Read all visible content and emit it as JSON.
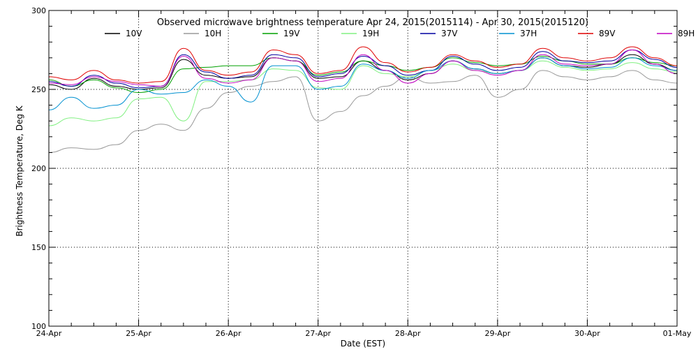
{
  "chart_data": {
    "type": "line",
    "title": "Observed microwave brightness temperature Apr 24, 2015(2015114) - Apr 30, 2015(2015120)",
    "xlabel": "Date (EST)",
    "ylabel": "Brightness Temperature, Deg K",
    "x_ticks": [
      "24-Apr",
      "25-Apr",
      "26-Apr",
      "27-Apr",
      "28-Apr",
      "29-Apr",
      "30-Apr",
      "01-May"
    ],
    "xlim": [
      0,
      7
    ],
    "ylim": [
      100,
      300
    ],
    "y_ticks": [
      100,
      150,
      200,
      250,
      300
    ],
    "grid": true,
    "legend_position": "top",
    "series": [
      {
        "name": "10V",
        "color": "#000000",
        "x": [
          0,
          0.25,
          0.5,
          0.75,
          1,
          1.25,
          1.5,
          1.75,
          2,
          2.25,
          2.5,
          2.75,
          3,
          3.25,
          3.5,
          3.75,
          4,
          4.25,
          4.5,
          4.75,
          5,
          5.25,
          5.5,
          5.75,
          6,
          6.25,
          6.5,
          6.75,
          7
        ],
        "y": [
          253,
          250,
          257,
          252,
          250,
          251,
          269,
          259,
          257,
          258,
          270,
          268,
          257,
          258,
          268,
          262,
          256,
          260,
          268,
          263,
          260,
          262,
          270,
          265,
          264,
          266,
          272,
          266,
          262
        ]
      },
      {
        "name": "10H",
        "color": "#999999",
        "x": [
          0,
          0.25,
          0.5,
          0.75,
          1,
          1.25,
          1.5,
          1.75,
          2,
          2.25,
          2.5,
          2.75,
          3,
          3.25,
          3.5,
          3.75,
          4,
          4.25,
          4.5,
          4.75,
          5,
          5.25,
          5.5,
          5.75,
          6,
          6.25,
          6.5,
          6.75,
          7
        ],
        "y": [
          210,
          213,
          212,
          215,
          224,
          228,
          224,
          238,
          248,
          252,
          255,
          258,
          230,
          236,
          246,
          252,
          258,
          254,
          255,
          259,
          245,
          250,
          262,
          258,
          256,
          258,
          262,
          256,
          254
        ]
      },
      {
        "name": "19V",
        "color": "#00a000",
        "x": [
          0,
          0.25,
          0.5,
          0.75,
          1,
          1.25,
          1.5,
          1.75,
          2,
          2.25,
          2.5,
          2.75,
          3,
          3.25,
          3.5,
          3.75,
          4,
          4.25,
          4.5,
          4.75,
          5,
          5.25,
          5.5,
          5.75,
          6,
          6.25,
          6.5,
          6.75,
          7
        ],
        "y": [
          256,
          252,
          256,
          251,
          248,
          250,
          263,
          264,
          265,
          265,
          270,
          268,
          259,
          261,
          268,
          265,
          262,
          264,
          270,
          267,
          265,
          266,
          271,
          268,
          266,
          266,
          270,
          267,
          265
        ]
      },
      {
        "name": "19H",
        "color": "#80f080",
        "x": [
          0,
          0.25,
          0.5,
          0.75,
          1,
          1.25,
          1.5,
          1.75,
          2,
          2.25,
          2.5,
          2.75,
          3,
          3.25,
          3.5,
          3.75,
          4,
          4.25,
          4.5,
          4.75,
          5,
          5.25,
          5.5,
          5.75,
          6,
          6.25,
          6.5,
          6.75,
          7
        ],
        "y": [
          227,
          232,
          230,
          232,
          244,
          245,
          230,
          255,
          255,
          256,
          263,
          262,
          251,
          250,
          265,
          260,
          258,
          262,
          266,
          262,
          260,
          262,
          268,
          264,
          262,
          263,
          267,
          263,
          261
        ]
      },
      {
        "name": "37V",
        "color": "#0000a0",
        "x": [
          0,
          0.25,
          0.5,
          0.75,
          1,
          1.25,
          1.5,
          1.75,
          2,
          2.25,
          2.5,
          2.75,
          3,
          3.25,
          3.5,
          3.75,
          4,
          4.25,
          4.5,
          4.75,
          5,
          5.25,
          5.5,
          5.75,
          6,
          6.25,
          6.5,
          6.75,
          7
        ],
        "y": [
          255,
          252,
          259,
          254,
          251,
          252,
          272,
          261,
          257,
          259,
          272,
          270,
          258,
          260,
          271,
          265,
          259,
          262,
          271,
          266,
          262,
          264,
          274,
          268,
          267,
          268,
          275,
          269,
          264
        ]
      },
      {
        "name": "37H",
        "color": "#0090d0",
        "x": [
          0,
          0.25,
          0.5,
          0.75,
          1,
          1.25,
          1.5,
          1.75,
          2,
          2.25,
          2.5,
          2.75,
          3,
          3.25,
          3.5,
          3.75,
          4,
          4.25,
          4.5,
          4.75,
          5,
          5.25,
          5.5,
          5.75,
          6,
          6.25,
          6.5,
          6.75,
          7
        ],
        "y": [
          237,
          245,
          238,
          240,
          250,
          247,
          248,
          256,
          252,
          242,
          265,
          265,
          250,
          252,
          266,
          262,
          257,
          262,
          268,
          263,
          260,
          262,
          270,
          265,
          263,
          264,
          270,
          265,
          262
        ]
      },
      {
        "name": "89V",
        "color": "#e00000",
        "x": [
          0,
          0.25,
          0.5,
          0.75,
          1,
          1.25,
          1.5,
          1.75,
          2,
          2.25,
          2.5,
          2.75,
          3,
          3.25,
          3.5,
          3.75,
          4,
          4.25,
          4.5,
          4.75,
          5,
          5.25,
          5.5,
          5.75,
          6,
          6.25,
          6.5,
          6.75,
          7
        ],
        "y": [
          258,
          256,
          262,
          256,
          254,
          255,
          276,
          262,
          259,
          261,
          275,
          272,
          260,
          262,
          277,
          267,
          261,
          264,
          272,
          268,
          264,
          266,
          276,
          270,
          268,
          270,
          277,
          270,
          265
        ]
      },
      {
        "name": "89H",
        "color": "#c000c0",
        "x": [
          0,
          0.25,
          0.5,
          0.75,
          1,
          1.25,
          1.5,
          1.75,
          2,
          2.25,
          2.5,
          2.75,
          3,
          3.25,
          3.5,
          3.75,
          4,
          4.25,
          4.5,
          4.75,
          5,
          5.25,
          5.5,
          5.75,
          6,
          6.25,
          6.5,
          6.75,
          7
        ],
        "y": [
          254,
          253,
          258,
          255,
          253,
          252,
          271,
          257,
          254,
          256,
          270,
          268,
          255,
          257,
          272,
          262,
          254,
          260,
          268,
          262,
          259,
          262,
          272,
          266,
          265,
          266,
          275,
          266,
          260
        ]
      }
    ]
  }
}
